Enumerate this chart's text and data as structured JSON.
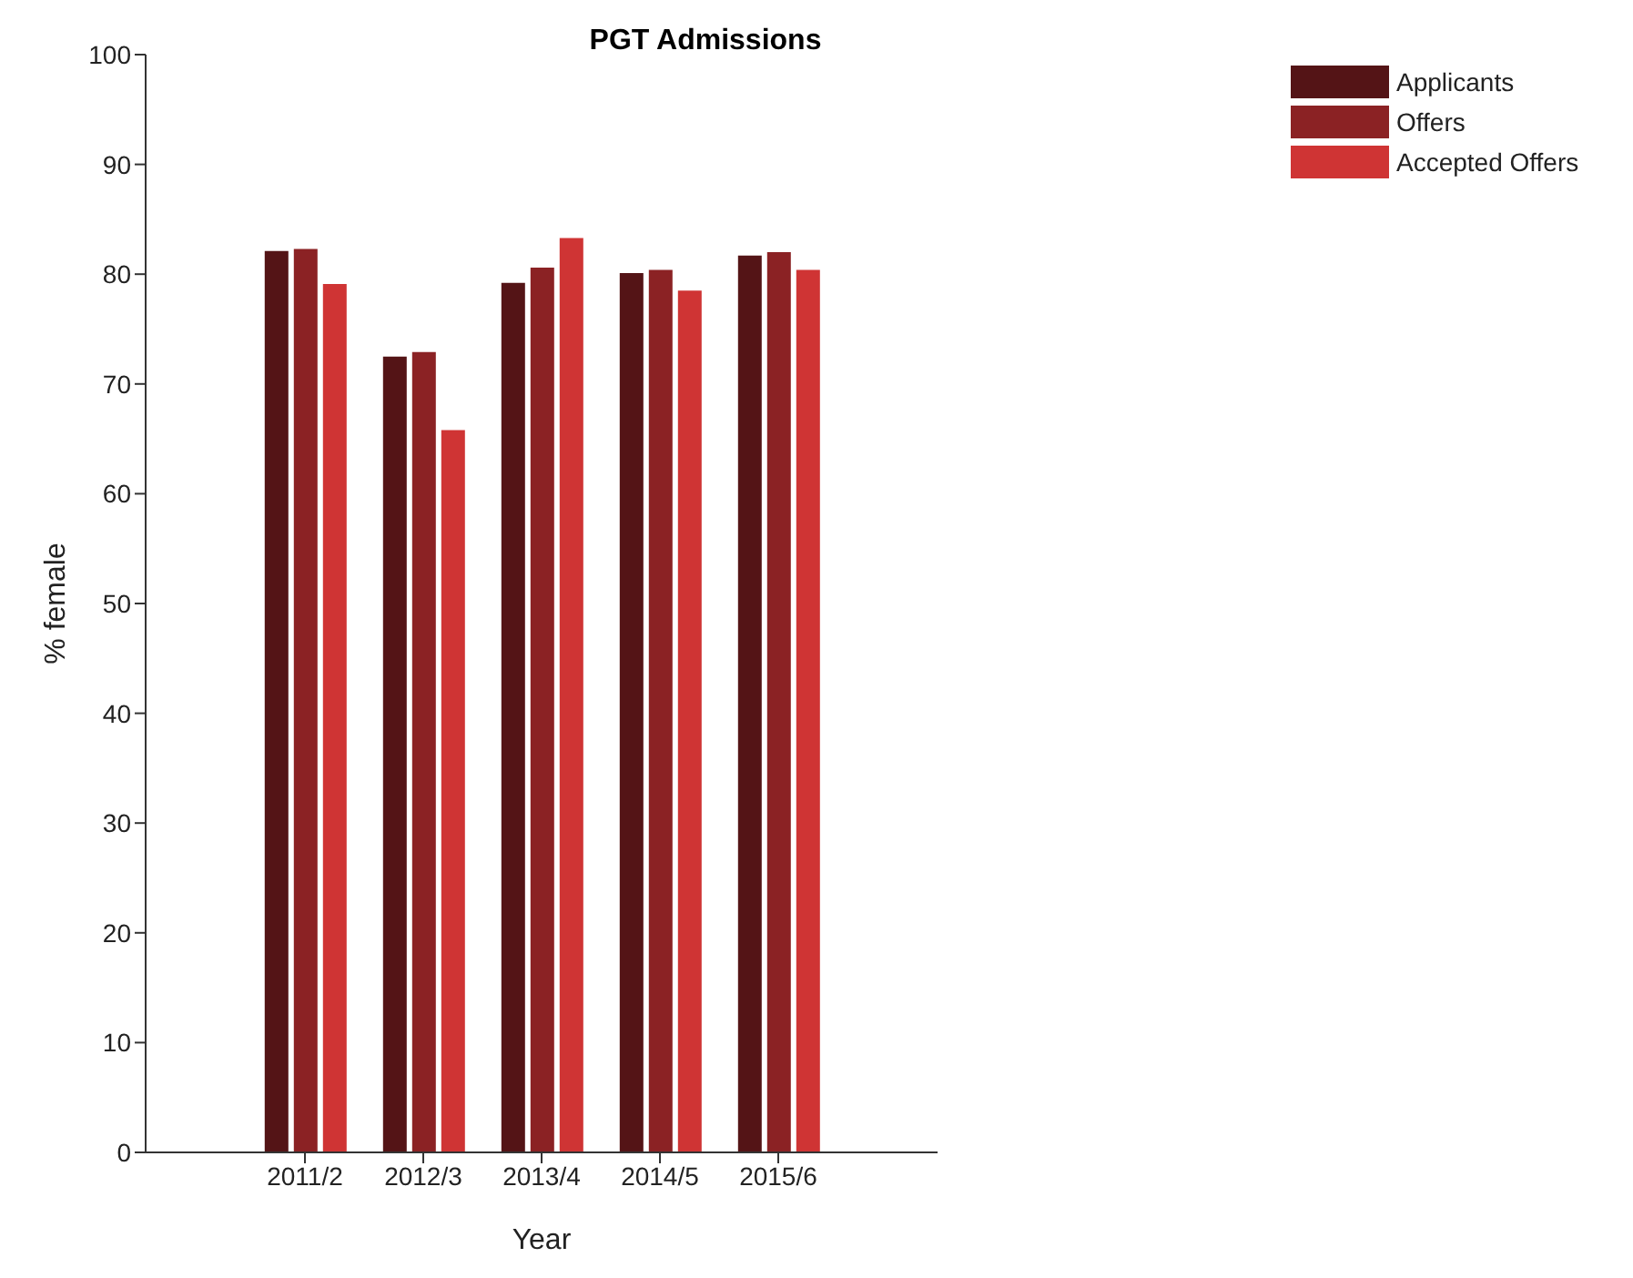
{
  "chart_data": {
    "type": "bar",
    "title": "PGT Admissions",
    "xlabel": "Year",
    "ylabel": "% female",
    "categories": [
      "2011/2",
      "2012/3",
      "2013/4",
      "2014/5",
      "2015/6"
    ],
    "series": [
      {
        "name": "Applicants",
        "color": "#541416",
        "values": [
          82.1,
          72.5,
          79.2,
          80.1,
          81.7
        ]
      },
      {
        "name": "Offers",
        "color": "#8b2224",
        "values": [
          82.3,
          72.9,
          80.6,
          80.4,
          82.0
        ]
      },
      {
        "name": "Accepted Offers",
        "color": "#cf3434",
        "values": [
          79.1,
          65.8,
          83.3,
          78.5,
          80.4
        ]
      }
    ],
    "ylim": [
      0,
      100
    ],
    "yticks": [
      0,
      10,
      20,
      30,
      40,
      50,
      60,
      70,
      80,
      90,
      100
    ],
    "grid": false,
    "legend": "top right"
  }
}
